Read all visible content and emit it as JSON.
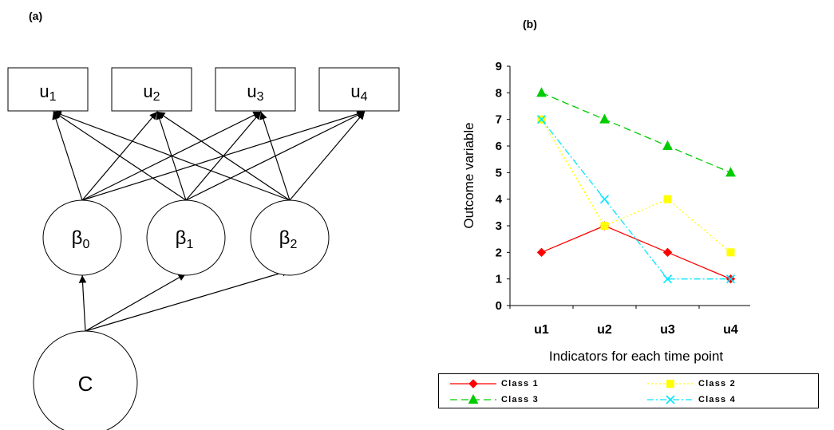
{
  "panel_a_label": "(a)",
  "panel_b_label": "(b)",
  "diagram": {
    "indicators": [
      {
        "base": "u",
        "sub": "1"
      },
      {
        "base": "u",
        "sub": "2"
      },
      {
        "base": "u",
        "sub": "3"
      },
      {
        "base": "u",
        "sub": "4"
      }
    ],
    "growth_factors": [
      {
        "base": "β",
        "sub": "0"
      },
      {
        "base": "β",
        "sub": "1"
      },
      {
        "base": "β",
        "sub": "2"
      }
    ],
    "class_node": "C"
  },
  "chart_data": {
    "type": "line",
    "categories": [
      "u1",
      "u2",
      "u3",
      "u4"
    ],
    "ylabel": "Outcome variable",
    "xlabel": "Indicators for each time point",
    "ylim": [
      0,
      9
    ],
    "yticks": [
      "0",
      "1",
      "2",
      "3",
      "4",
      "5",
      "6",
      "7",
      "8",
      "9"
    ],
    "grid": false,
    "legend_position": "bottom",
    "series": [
      {
        "name": "Class 1",
        "values": [
          2,
          3,
          2,
          1
        ],
        "color": "#ff0000",
        "dash": "",
        "marker": "diamond"
      },
      {
        "name": "Class 2",
        "values": [
          7,
          3,
          4,
          2
        ],
        "color": "#ffff00",
        "dash": "2,3",
        "marker": "square"
      },
      {
        "name": "Class 3",
        "values": [
          8,
          7,
          6,
          5
        ],
        "color": "#00cc00",
        "dash": "9,5",
        "marker": "triangle"
      },
      {
        "name": "Class 4",
        "values": [
          7,
          4,
          1,
          1
        ],
        "color": "#00e5ff",
        "dash": "8,3,2,3",
        "marker": "x"
      }
    ]
  }
}
